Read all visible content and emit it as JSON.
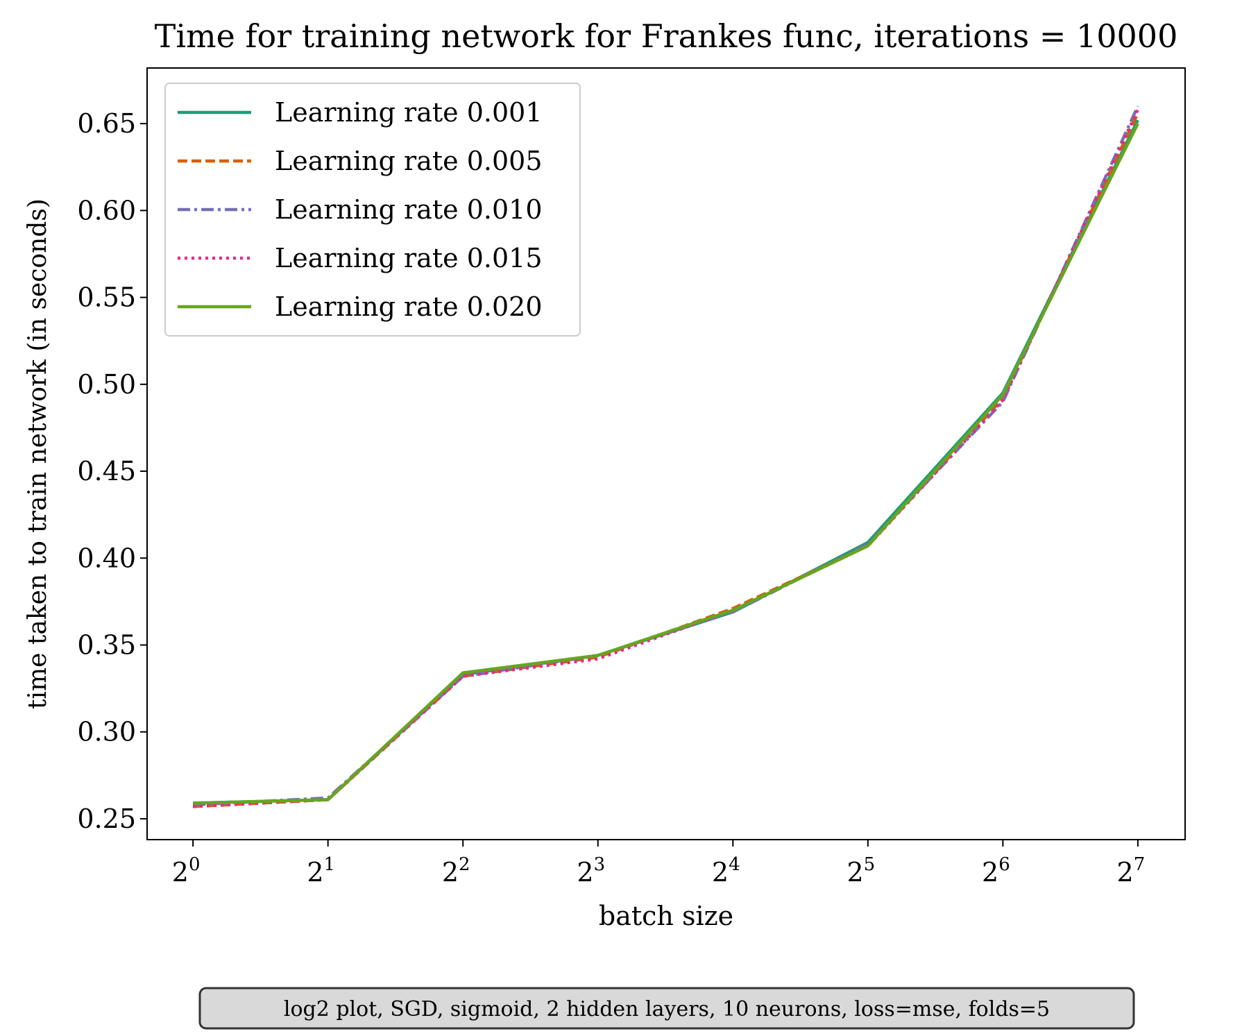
{
  "chart_data": {
    "type": "line",
    "title": "Time for training network for Frankes func, iterations = 10000",
    "xlabel": "batch size",
    "ylabel": "time taken to train network (in seconds)",
    "x_scale": "log2",
    "x": [
      1,
      2,
      4,
      8,
      16,
      32,
      64,
      128
    ],
    "x_tick_labels": [
      {
        "base": "2",
        "exp": "0"
      },
      {
        "base": "2",
        "exp": "1"
      },
      {
        "base": "2",
        "exp": "2"
      },
      {
        "base": "2",
        "exp": "3"
      },
      {
        "base": "2",
        "exp": "4"
      },
      {
        "base": "2",
        "exp": "5"
      },
      {
        "base": "2",
        "exp": "6"
      },
      {
        "base": "2",
        "exp": "7"
      }
    ],
    "y_ticks": [
      "0.25",
      "0.30",
      "0.35",
      "0.40",
      "0.45",
      "0.50",
      "0.55",
      "0.60",
      "0.65"
    ],
    "ylim": [
      0.238,
      0.682
    ],
    "xlim_exp": [
      -0.34,
      7.35
    ],
    "grid": false,
    "legend_position": "upper-left",
    "series": [
      {
        "name": "Learning rate 0.001",
        "color": "#1b9e77",
        "dash": "solid",
        "values": [
          0.259,
          0.261,
          0.333,
          0.344,
          0.369,
          0.409,
          0.495,
          0.652
        ]
      },
      {
        "name": "Learning rate 0.005",
        "color": "#d95f02",
        "dash": "dashed",
        "values": [
          0.257,
          0.261,
          0.332,
          0.343,
          0.371,
          0.407,
          0.492,
          0.656
        ]
      },
      {
        "name": "Learning rate 0.010",
        "color": "#7570b3",
        "dash": "dashdot",
        "values": [
          0.258,
          0.262,
          0.332,
          0.344,
          0.369,
          0.408,
          0.49,
          0.66
        ]
      },
      {
        "name": "Learning rate 0.015",
        "color": "#e7298a",
        "dash": "dotted",
        "values": [
          0.257,
          0.261,
          0.332,
          0.342,
          0.37,
          0.407,
          0.491,
          0.658
        ]
      },
      {
        "name": "Learning rate 0.020",
        "color": "#66a61e",
        "dash": "solid",
        "values": [
          0.259,
          0.261,
          0.334,
          0.344,
          0.37,
          0.407,
          0.494,
          0.65
        ]
      }
    ],
    "annotation": "log2 plot, SGD, sigmoid, 2 hidden layers, 10 neurons, loss=mse, folds=5"
  }
}
